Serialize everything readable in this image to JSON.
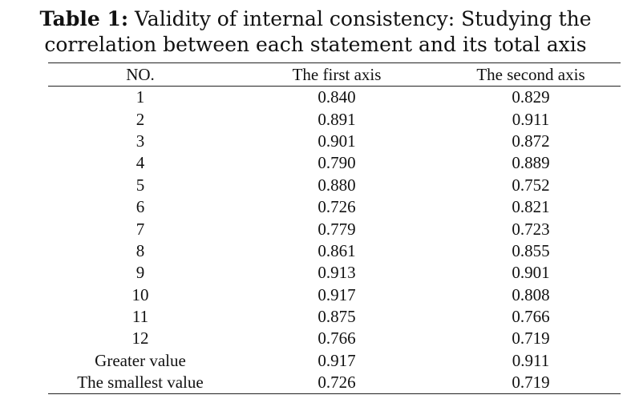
{
  "caption": {
    "label": "Table 1:",
    "line1": "Validity of internal consistency: Studying the",
    "line2": "correlation between each statement and its total axis"
  },
  "table": {
    "headers": [
      "NO.",
      "The first axis",
      "The second axis"
    ],
    "rows": [
      [
        "1",
        "0.840",
        "0.829"
      ],
      [
        "2",
        "0.891",
        "0.911"
      ],
      [
        "3",
        "0.901",
        "0.872"
      ],
      [
        "4",
        "0.790",
        "0.889"
      ],
      [
        "5",
        "0.880",
        "0.752"
      ],
      [
        "6",
        "0.726",
        "0.821"
      ],
      [
        "7",
        "0.779",
        "0.723"
      ],
      [
        "8",
        "0.861",
        "0.855"
      ],
      [
        "9",
        "0.913",
        "0.901"
      ],
      [
        "10",
        "0.917",
        "0.808"
      ],
      [
        "11",
        "0.875",
        "0.766"
      ],
      [
        "12",
        "0.766",
        "0.719"
      ],
      [
        "Greater value",
        "0.917",
        "0.911"
      ],
      [
        "The smallest value",
        "0.726",
        "0.719"
      ]
    ]
  }
}
